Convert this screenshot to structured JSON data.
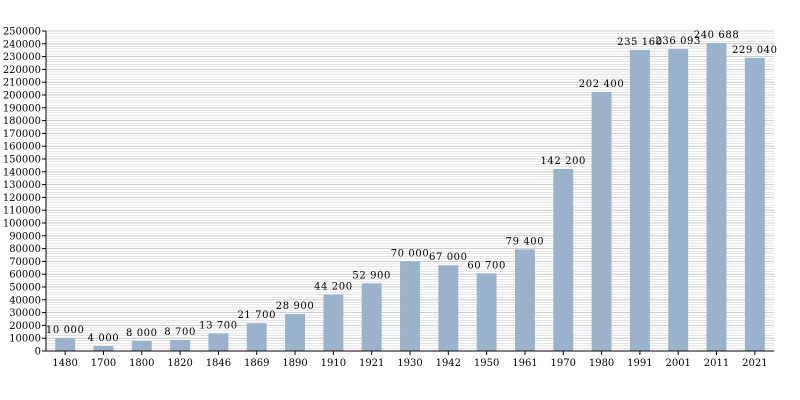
{
  "chart_data": {
    "type": "bar",
    "title": "",
    "xlabel": "",
    "ylabel": "",
    "categories": [
      "1480",
      "1700",
      "1800",
      "1820",
      "1846",
      "1869",
      "1890",
      "1910",
      "1921",
      "1930",
      "1942",
      "1950",
      "1961",
      "1970",
      "1980",
      "1991",
      "2001",
      "2011",
      "2021"
    ],
    "values": [
      10000,
      4000,
      8000,
      8700,
      13700,
      21700,
      28900,
      44200,
      52900,
      70000,
      67000,
      60700,
      79400,
      142200,
      202400,
      235160,
      236093,
      240688,
      229040
    ],
    "data_labels": [
      "10 000",
      "4 000",
      "8 000",
      "8 700",
      "13 700",
      "21 700",
      "28 900",
      "44 200",
      "52 900",
      "70 000",
      "67 000",
      "60 700",
      "79 400",
      "142 200",
      "202 400",
      "235 160",
      "236 093",
      "240 688",
      "229 040"
    ],
    "ylim": [
      0,
      250000
    ],
    "y_ticks": [
      0,
      10000,
      20000,
      30000,
      40000,
      50000,
      60000,
      70000,
      80000,
      90000,
      100000,
      110000,
      120000,
      130000,
      140000,
      150000,
      160000,
      170000,
      180000,
      190000,
      200000,
      210000,
      220000,
      230000,
      240000,
      250000
    ],
    "grid": true,
    "bar_color": "#9ab2cc",
    "grid_color": "#c8c8c8"
  }
}
